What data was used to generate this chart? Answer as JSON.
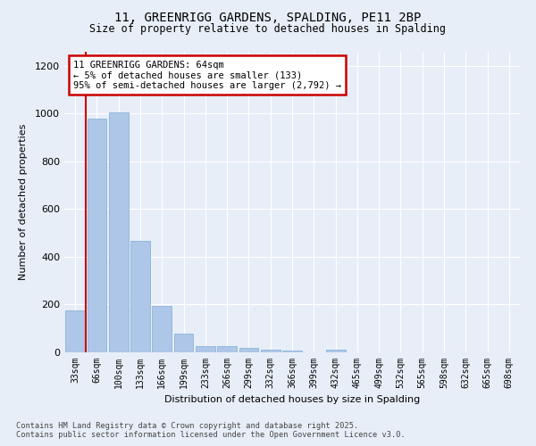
{
  "title": "11, GREENRIGG GARDENS, SPALDING, PE11 2BP",
  "subtitle": "Size of property relative to detached houses in Spalding",
  "xlabel": "Distribution of detached houses by size in Spalding",
  "ylabel": "Number of detached properties",
  "annotation_line1": "11 GREENRIGG GARDENS: 64sqm",
  "annotation_line2": "← 5% of detached houses are smaller (133)",
  "annotation_line3": "95% of semi-detached houses are larger (2,792) →",
  "footer_line1": "Contains HM Land Registry data © Crown copyright and database right 2025.",
  "footer_line2": "Contains public sector information licensed under the Open Government Licence v3.0.",
  "categories": [
    "33sqm",
    "66sqm",
    "100sqm",
    "133sqm",
    "166sqm",
    "199sqm",
    "233sqm",
    "266sqm",
    "299sqm",
    "332sqm",
    "366sqm",
    "399sqm",
    "432sqm",
    "465sqm",
    "499sqm",
    "532sqm",
    "565sqm",
    "598sqm",
    "632sqm",
    "665sqm",
    "698sqm"
  ],
  "values": [
    175,
    980,
    1005,
    468,
    193,
    80,
    27,
    25,
    17,
    10,
    6,
    0,
    10,
    0,
    0,
    0,
    0,
    0,
    0,
    0,
    0
  ],
  "bar_color": "#aec6e8",
  "bar_edge_color": "#7bafd4",
  "vline_x": 0.5,
  "vline_color": "#cc0000",
  "annotation_box_edgecolor": "#cc0000",
  "background_color": "#e8eef8",
  "grid_color": "#ffffff",
  "ylim": [
    0,
    1260
  ],
  "yticks": [
    0,
    200,
    400,
    600,
    800,
    1000,
    1200
  ]
}
